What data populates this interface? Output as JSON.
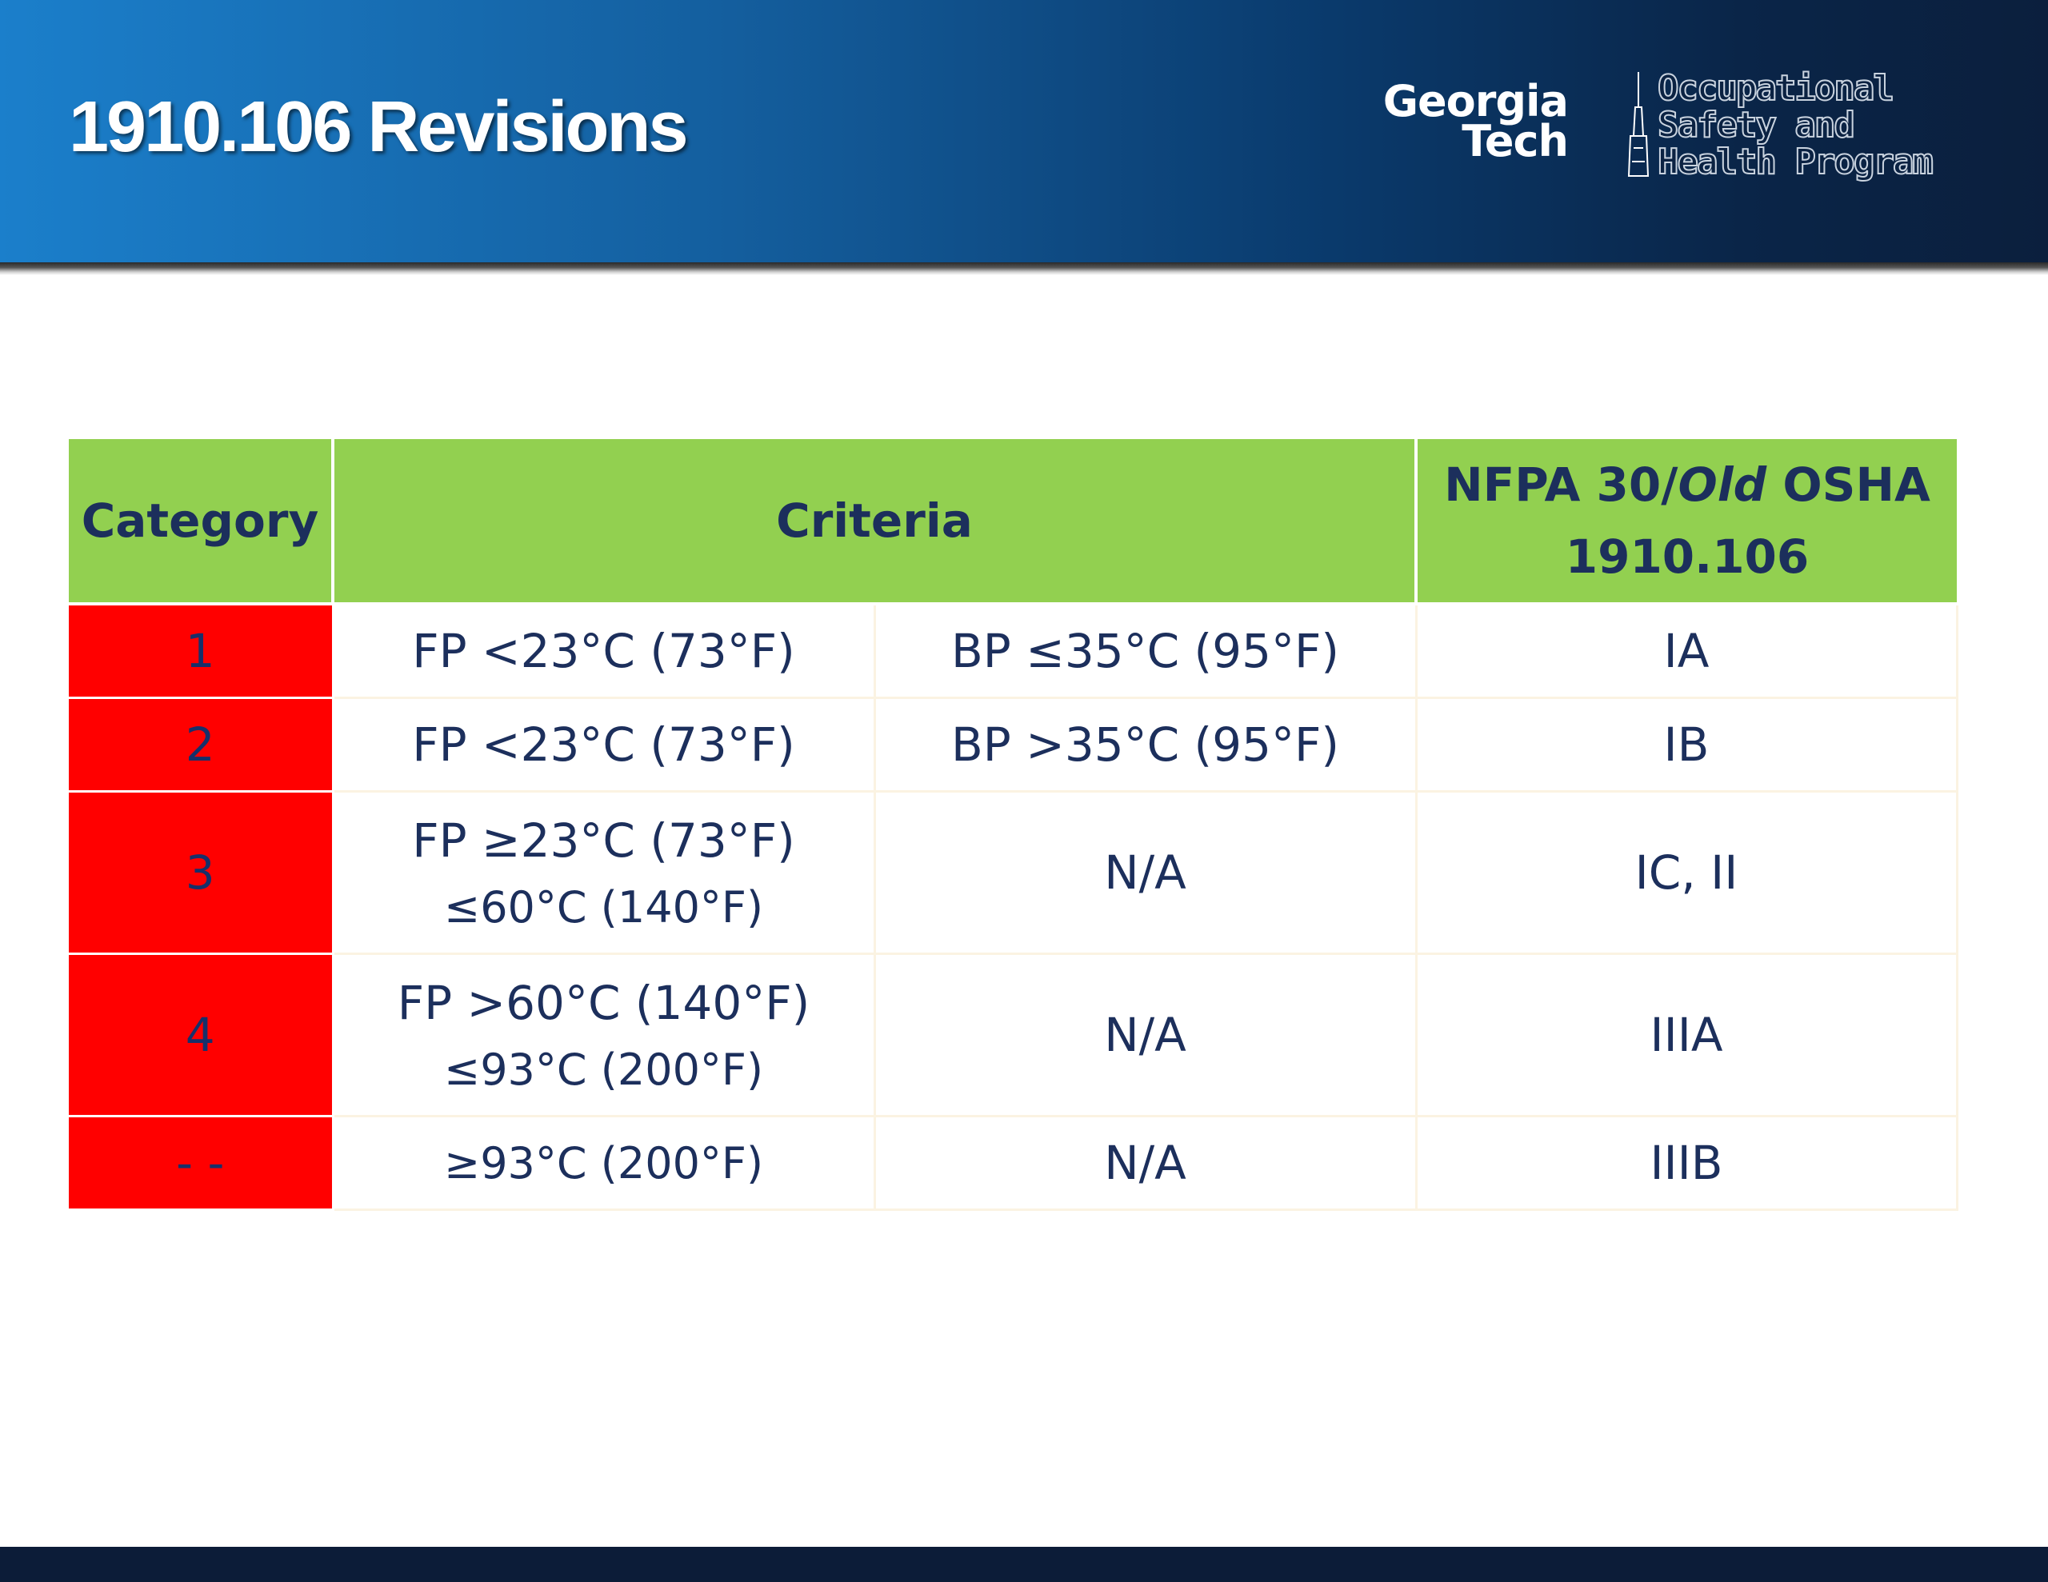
{
  "slide": {
    "title": "1910.106 Revisions"
  },
  "logo": {
    "line1": "Georgia",
    "line2": "Tech",
    "program_line1": "Occupational",
    "program_line2": "Safety and",
    "program_line3": "Health Program"
  },
  "table": {
    "headers": {
      "category": "Category",
      "criteria": "Criteria",
      "nfpa_prefix": "NFPA 30/",
      "nfpa_italic": "Old",
      "nfpa_suffix": " OSHA",
      "nfpa_line2": "1910.106"
    },
    "rows": [
      {
        "category": "1",
        "criteria_a": "FP <23°C (73°F)",
        "criteria_a2": "",
        "criteria_b": "BP ≤35°C (95°F)",
        "nfpa": "IA"
      },
      {
        "category": "2",
        "criteria_a": "FP <23°C (73°F)",
        "criteria_a2": "",
        "criteria_b": "BP >35°C (95°F)",
        "nfpa": "IB"
      },
      {
        "category": "3",
        "criteria_a": "FP ≥23°C (73°F)",
        "criteria_a2": "≤60°C (140°F)",
        "criteria_b": "N/A",
        "nfpa": "IC, II"
      },
      {
        "category": "4",
        "criteria_a": "FP >60°C (140°F)",
        "criteria_a2": "≤93°C (200°F)",
        "criteria_b": "N/A",
        "nfpa": "IIIA"
      },
      {
        "category": "- -",
        "criteria_a": "≥93°C (200°F)",
        "criteria_a2": "",
        "criteria_b": "N/A",
        "nfpa": "IIIB"
      }
    ]
  },
  "colors": {
    "header_green": "#92d050",
    "category_red": "#ff0000",
    "text_navy": "#1c2f5c",
    "banner_blue": "#1b7fcb",
    "banner_dark": "#0b1f3d"
  }
}
